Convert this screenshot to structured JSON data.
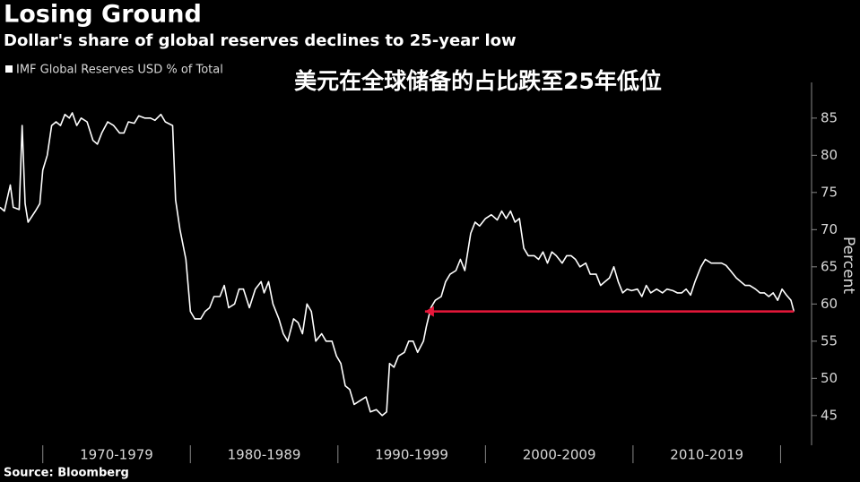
{
  "chart_data": {
    "type": "line",
    "title": "Losing Ground",
    "subtitle": "Dollar's share of global reserves declines to 25-year low",
    "annotation": "美元在全球储备的占比跌至25年低位",
    "y_label": "Percent",
    "source": "Source: Bloomberg",
    "xlim": [
      1967.1,
      2022.1
    ],
    "xticks": [
      1970,
      1980,
      1990,
      2000,
      2010,
      2020
    ],
    "xband_labels": [
      "1970-1979",
      "1980-1989",
      "1990-1999",
      "2000-2009",
      "2010-2019"
    ],
    "ylim": [
      41,
      89.8
    ],
    "yticks": [
      45,
      50,
      55,
      60,
      65,
      70,
      75,
      80,
      85
    ],
    "arrow": {
      "x": [
        2020.9,
        1995.9
      ],
      "y": 59,
      "color": "#e8173a"
    },
    "x": [
      1967.1,
      1967.4,
      1967.8,
      1968.0,
      1968.4,
      1968.6,
      1968.8,
      1969.0,
      1969.5,
      1969.8,
      1970.0,
      1970.3,
      1970.6,
      1970.9,
      1971.2,
      1971.5,
      1971.8,
      1972.0,
      1972.3,
      1972.6,
      1973.0,
      1973.4,
      1973.7,
      1974.0,
      1974.4,
      1974.8,
      1975.2,
      1975.5,
      1975.8,
      1976.2,
      1976.5,
      1976.9,
      1977.3,
      1977.6,
      1978.0,
      1978.3,
      1978.6,
      1978.8,
      1979.0,
      1979.3,
      1979.7,
      1980.0,
      1980.3,
      1980.7,
      1981.0,
      1981.3,
      1981.6,
      1982.0,
      1982.3,
      1982.6,
      1983.0,
      1983.3,
      1983.6,
      1984.0,
      1984.4,
      1984.8,
      1985.0,
      1985.3,
      1985.6,
      1986.0,
      1986.3,
      1986.6,
      1987.0,
      1987.3,
      1987.6,
      1987.9,
      1988.2,
      1988.5,
      1988.9,
      1989.2,
      1989.6,
      1989.9,
      1990.2,
      1990.5,
      1990.8,
      1991.1,
      1991.5,
      1991.9,
      1992.2,
      1992.6,
      1993.0,
      1993.3,
      1993.5,
      1993.8,
      1994.1,
      1994.5,
      1994.8,
      1995.1,
      1995.4,
      1995.8,
      1996.0,
      1996.3,
      1996.6,
      1997.0,
      1997.3,
      1997.6,
      1998.0,
      1998.3,
      1998.6,
      1999.0,
      1999.3,
      1999.6,
      2000.0,
      2000.4,
      2000.8,
      2001.1,
      2001.4,
      2001.7,
      2002.0,
      2002.3,
      2002.6,
      2002.9,
      2003.3,
      2003.6,
      2003.9,
      2004.2,
      2004.5,
      2004.8,
      2005.2,
      2005.5,
      2005.8,
      2006.1,
      2006.4,
      2006.8,
      2007.1,
      2007.5,
      2007.8,
      2008.1,
      2008.4,
      2008.7,
      2009.0,
      2009.3,
      2009.6,
      2009.9,
      2010.3,
      2010.6,
      2010.9,
      2011.2,
      2011.6,
      2012.0,
      2012.3,
      2012.7,
      2013.0,
      2013.3,
      2013.6,
      2013.9,
      2014.2,
      2014.6,
      2014.9,
      2015.3,
      2015.6,
      2016.0,
      2016.3,
      2016.6,
      2017.0,
      2017.3,
      2017.6,
      2017.9,
      2018.3,
      2018.6,
      2018.9,
      2019.2,
      2019.5,
      2019.8,
      2020.1,
      2020.4,
      2020.7,
      2020.9
    ],
    "series": [
      {
        "name": "IMF Global Reserves USD % of Total",
        "color": "#ffffff",
        "values": [
          73,
          72.5,
          76,
          73,
          72.7,
          84,
          73.5,
          71,
          72.5,
          73.5,
          78,
          80,
          84,
          84.5,
          84,
          85.5,
          85,
          85.7,
          84,
          85,
          84.5,
          82,
          81.5,
          83,
          84.5,
          84,
          83,
          83,
          84.5,
          84.3,
          85.3,
          85,
          85,
          84.7,
          85.5,
          84.5,
          84.2,
          84,
          74,
          70,
          66,
          59,
          58,
          58,
          59,
          59.5,
          61,
          61,
          62.5,
          59.5,
          60,
          62,
          62,
          59.5,
          62,
          63,
          61.5,
          63,
          60,
          58,
          56,
          55,
          58,
          57.5,
          56,
          60,
          59,
          55,
          56,
          55,
          55,
          53,
          52,
          49,
          48.5,
          46.5,
          47,
          47.5,
          45.5,
          45.8,
          45,
          45.5,
          52,
          51.5,
          53,
          53.5,
          55,
          55,
          53.5,
          55,
          57,
          59.5,
          60.5,
          61,
          63,
          64,
          64.5,
          66,
          64.5,
          69.5,
          71,
          70.5,
          71.5,
          72,
          71.3,
          72.5,
          71.5,
          72.5,
          71,
          71.5,
          67.5,
          66.5,
          66.5,
          66,
          67,
          65.5,
          67,
          66.5,
          65.5,
          66.5,
          66.5,
          66,
          65,
          65.5,
          64,
          64,
          62.5,
          63,
          63.5,
          65,
          63,
          61.5,
          62,
          61.8,
          62,
          61,
          62.5,
          61.5,
          62,
          61.5,
          62,
          61.8,
          61.5,
          61.5,
          62,
          61.2,
          63,
          65,
          66,
          65.5,
          65.5,
          65.5,
          65.2,
          64.5,
          63.5,
          63,
          62.5,
          62.5,
          62,
          61.5,
          61.5,
          61,
          61.5,
          60.5,
          62,
          61.2,
          60.5,
          59
        ]
      }
    ]
  }
}
